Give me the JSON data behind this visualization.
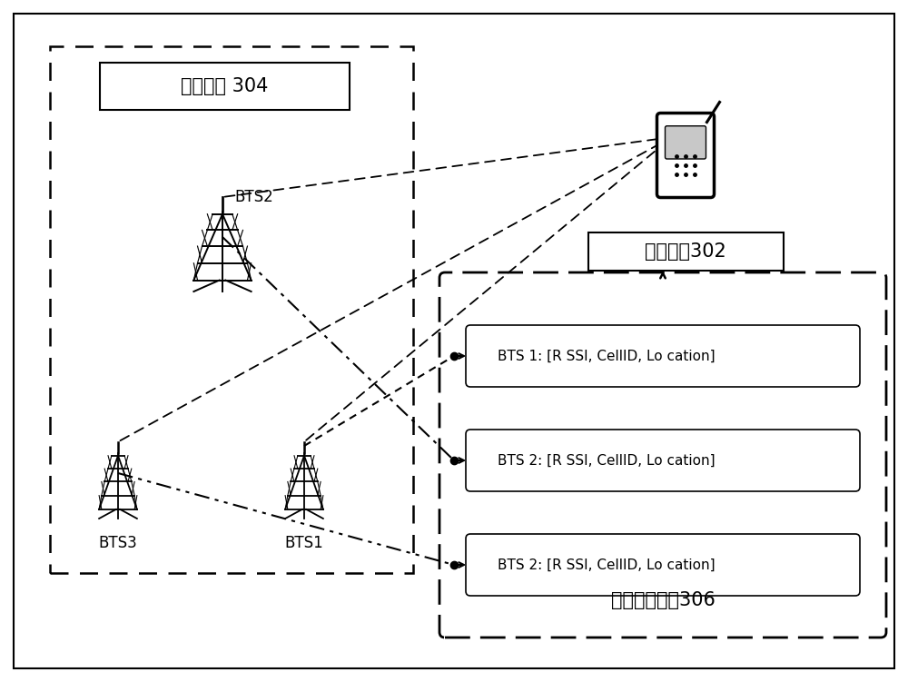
{
  "bg_color": "#ffffff",
  "border_color": "#000000",
  "title_304": "目标基站 304",
  "title_302": "目标终端302",
  "title_306": "目标基站信息306",
  "bts2_label": "BTS2",
  "bts3_label": "BTS3",
  "bts1_label": "BTS1",
  "info_labels": [
    "BTS 1: [R SSI, CellID, Lo cation]",
    "BTS 2: [R SSI, CellID, Lo cation]",
    "BTS 2: [R SSI, CellID, Lo cation]"
  ],
  "font_size_title": 15,
  "font_size_bts": 12,
  "font_size_info": 11,
  "font_size_306": 15
}
